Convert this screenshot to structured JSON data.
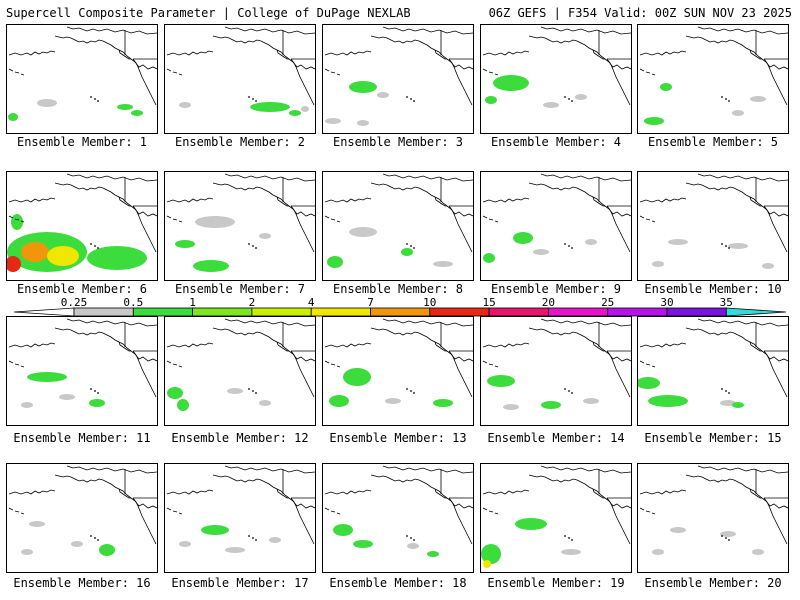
{
  "header": {
    "left_title": "Supercell Composite Parameter | College of DuPage NEXLAB",
    "right_title": "06Z GEFS | F354 Valid: 00Z SUN NOV 23 2025"
  },
  "colorbar": {
    "labels": [
      "0.25",
      "0.5",
      "1",
      "2",
      "4",
      "7",
      "10",
      "15",
      "20",
      "25",
      "30",
      "35"
    ],
    "colors": [
      "#c8c8c8",
      "#3cdc3c",
      "#7ce61e",
      "#c8f000",
      "#f0e600",
      "#f0960a",
      "#e62814",
      "#e6146e",
      "#e614c8",
      "#b414e6",
      "#7814dc",
      "#a050dc",
      "#32dcdc"
    ]
  },
  "map_colors": {
    "gray": "#c8c8c8",
    "green": "#3cdc3c",
    "yellow": "#f0e600",
    "orange": "#f0960a",
    "red": "#e62814"
  },
  "members": [
    {
      "label": "Ensemble Member: 1"
    },
    {
      "label": "Ensemble Member: 2"
    },
    {
      "label": "Ensemble Member: 3"
    },
    {
      "label": "Ensemble Member: 4"
    },
    {
      "label": "Ensemble Member: 5"
    },
    {
      "label": "Ensemble Member: 6"
    },
    {
      "label": "Ensemble Member: 7"
    },
    {
      "label": "Ensemble Member: 8"
    },
    {
      "label": "Ensemble Member: 9"
    },
    {
      "label": "Ensemble Member: 10"
    },
    {
      "label": "Ensemble Member: 11"
    },
    {
      "label": "Ensemble Member: 12"
    },
    {
      "label": "Ensemble Member: 13"
    },
    {
      "label": "Ensemble Member: 14"
    },
    {
      "label": "Ensemble Member: 15"
    },
    {
      "label": "Ensemble Member: 16"
    },
    {
      "label": "Ensemble Member: 17"
    },
    {
      "label": "Ensemble Member: 18"
    },
    {
      "label": "Ensemble Member: 19"
    },
    {
      "label": "Ensemble Member: 20"
    }
  ]
}
